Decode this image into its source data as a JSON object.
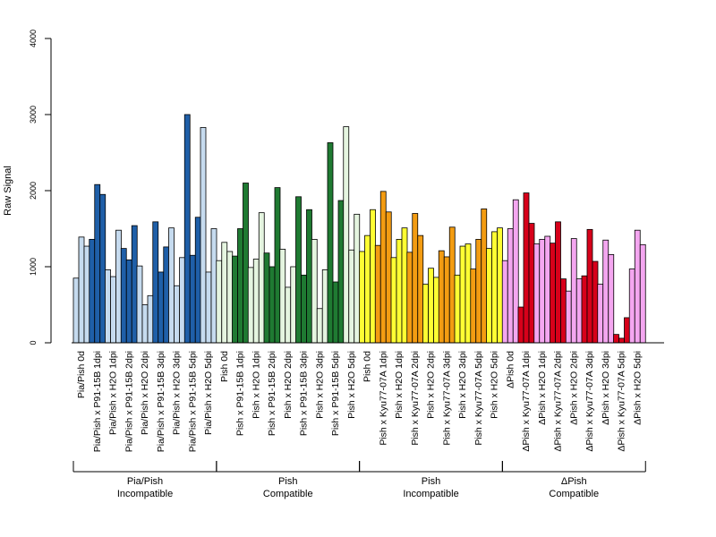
{
  "chart_data": {
    "type": "bar",
    "ylabel": "Raw Signal",
    "xlabel": "",
    "ylim": [
      0,
      4000
    ],
    "yticks": [
      0,
      1000,
      2000,
      3000,
      4000
    ],
    "grid": false,
    "bars_per_category": 3,
    "categories": [
      "Pia/Pish 0d",
      "Pia/Pish x P91-15B 1dpi",
      "Pia/Pish x H2O 1dpi",
      "Pia/Pish x P91-15B 2dpi",
      "Pia/Pish x H2O 2dpi",
      "Pia/Pish x P91-15B 3dpi",
      "Pia/Pish x H2O 3dpi",
      "Pia/Pish x P91-15B 5dpi",
      "Pia/Pish x H2O 5dpi",
      "Pish 0d",
      "Pish x P91-15B 1dpi",
      "Pish x H2O 1dpi",
      "Pish x P91-15B 2dpi",
      "Pish x H2O 2dpi",
      "Pish x P91-15B 3dpi",
      "Pish x H2O 3dpi",
      "Pish x P91-15B 5dpi",
      "Pish x H2O 5dpi",
      "Pish 0d",
      "Pish x Kyu77-07A 1dpi",
      "Pish x H2O 1dpi",
      "Pish x Kyu77-07A 2dpi",
      "Pish x H2O 2dpi",
      "Pish x Kyu77-07A 3dpi",
      "Pish x H2O 3dpi",
      "Pish x Kyu77-07A 5dpi",
      "Pish x H2O 5dpi",
      "ΔPish 0d",
      "ΔPish x Kyu77-07A 1dpi",
      "ΔPish x H2O 1dpi",
      "ΔPish x Kyu77-07A 2dpi",
      "ΔPish x H2O 2dpi",
      "ΔPish x Kyu77-07A 3dpi",
      "ΔPish x H2O 3dpi",
      "ΔPish x Kyu77-07A 5dpi",
      "ΔPish x H2O 5dpi"
    ],
    "values": [
      [
        850,
        1390,
        1270
      ],
      [
        1360,
        2080,
        1950
      ],
      [
        960,
        870,
        1480
      ],
      [
        1240,
        1090,
        1540
      ],
      [
        1010,
        500,
        620
      ],
      [
        1590,
        930,
        1260
      ],
      [
        1510,
        750,
        1120
      ],
      [
        3000,
        1150,
        1650
      ],
      [
        2830,
        930,
        1500
      ],
      [
        1080,
        1320,
        1200
      ],
      [
        1140,
        1500,
        2100
      ],
      [
        990,
        1100,
        1710
      ],
      [
        1180,
        1000,
        2040
      ],
      [
        1230,
        730,
        1000
      ],
      [
        1920,
        890,
        1750
      ],
      [
        1360,
        450,
        960
      ],
      [
        2630,
        800,
        1870
      ],
      [
        2840,
        1220,
        1690
      ],
      [
        1200,
        1410,
        1750
      ],
      [
        1280,
        1990,
        1720
      ],
      [
        1120,
        1360,
        1510
      ],
      [
        1190,
        1700,
        1410
      ],
      [
        770,
        980,
        860
      ],
      [
        1210,
        1130,
        1520
      ],
      [
        890,
        1270,
        1300
      ],
      [
        970,
        1360,
        1760
      ],
      [
        1240,
        1460,
        1510
      ],
      [
        1080,
        1500,
        1880
      ],
      [
        470,
        1970,
        1570
      ],
      [
        1300,
        1360,
        1400
      ],
      [
        1310,
        1590,
        840
      ],
      [
        680,
        1370,
        840
      ],
      [
        880,
        1490,
        1070
      ],
      [
        770,
        1350,
        1160
      ],
      [
        110,
        60,
        330
      ],
      [
        970,
        1480,
        1290
      ]
    ],
    "category_colors": [
      "#c6dbef",
      "#1f5fa8",
      "#c6dbef",
      "#1f5fa8",
      "#c6dbef",
      "#1f5fa8",
      "#c6dbef",
      "#1f5fa8",
      "#c6dbef",
      "#e5f5e0",
      "#1f7a32",
      "#e5f5e0",
      "#1f7a32",
      "#e5f5e0",
      "#1f7a32",
      "#e5f5e0",
      "#1f7a32",
      "#e5f5e0",
      "#ffff33",
      "#f39c12",
      "#ffff33",
      "#f39c12",
      "#ffff33",
      "#f39c12",
      "#ffff33",
      "#f39c12",
      "#ffff33",
      "#f4a6f0",
      "#d7001a",
      "#f4a6f0",
      "#d7001a",
      "#f4a6f0",
      "#d7001a",
      "#f4a6f0",
      "#d7001a",
      "#f4a6f0"
    ],
    "groups": [
      {
        "line1": "Pia/Pish",
        "line2": "Incompatible",
        "start": 0,
        "end": 8
      },
      {
        "line1": "Pish",
        "line2": "Compatible",
        "start": 9,
        "end": 17
      },
      {
        "line1": "Pish",
        "line2": "Incompatible",
        "start": 18,
        "end": 26
      },
      {
        "line1": "ΔPish",
        "line2": "Compatible",
        "start": 27,
        "end": 35
      }
    ]
  }
}
